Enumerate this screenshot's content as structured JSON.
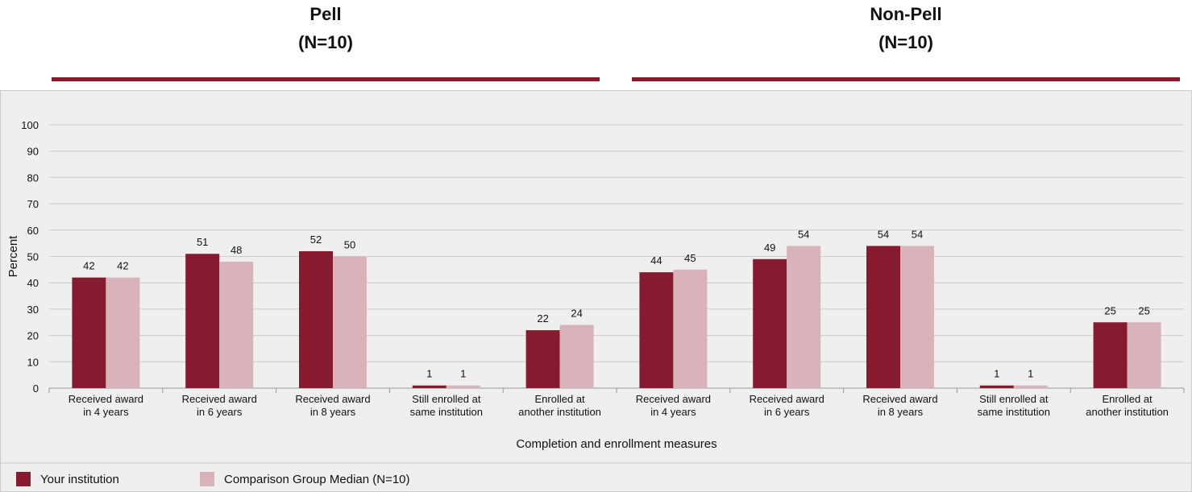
{
  "groups": [
    {
      "title": "Pell",
      "n": "(N=10)"
    },
    {
      "title": "Non-Pell",
      "n": "(N=10)"
    }
  ],
  "chart_data": {
    "type": "bar",
    "title": "",
    "xlabel": "Completion and enrollment measures",
    "ylabel": "Percent",
    "ylim": [
      0,
      100
    ],
    "yticks": [
      "0",
      "10",
      "20",
      "30",
      "40",
      "50",
      "60",
      "70",
      "80",
      "90",
      "100"
    ],
    "grid": true,
    "categories": [
      [
        "Received award",
        "in 4 years"
      ],
      [
        "Received award",
        "in 6 years"
      ],
      [
        "Received award",
        "in 8 years"
      ],
      [
        "Still enrolled at",
        "same institution"
      ],
      [
        "Enrolled at",
        "another institution"
      ],
      [
        "Received award",
        "in 4 years"
      ],
      [
        "Received award",
        "in 6 years"
      ],
      [
        "Received award",
        "in 8 years"
      ],
      [
        "Still enrolled at",
        "same institution"
      ],
      [
        "Enrolled at",
        "another institution"
      ]
    ],
    "series": [
      {
        "name": "Your institution",
        "color": "#861a2e",
        "values": [
          42,
          51,
          52,
          1,
          22,
          44,
          49,
          54,
          1,
          25
        ]
      },
      {
        "name": "Comparison Group Median (N=10)",
        "color": "#d8b3b9",
        "values": [
          42,
          48,
          50,
          1,
          24,
          45,
          54,
          54,
          1,
          25
        ]
      }
    ],
    "legend": "bottom-left"
  }
}
